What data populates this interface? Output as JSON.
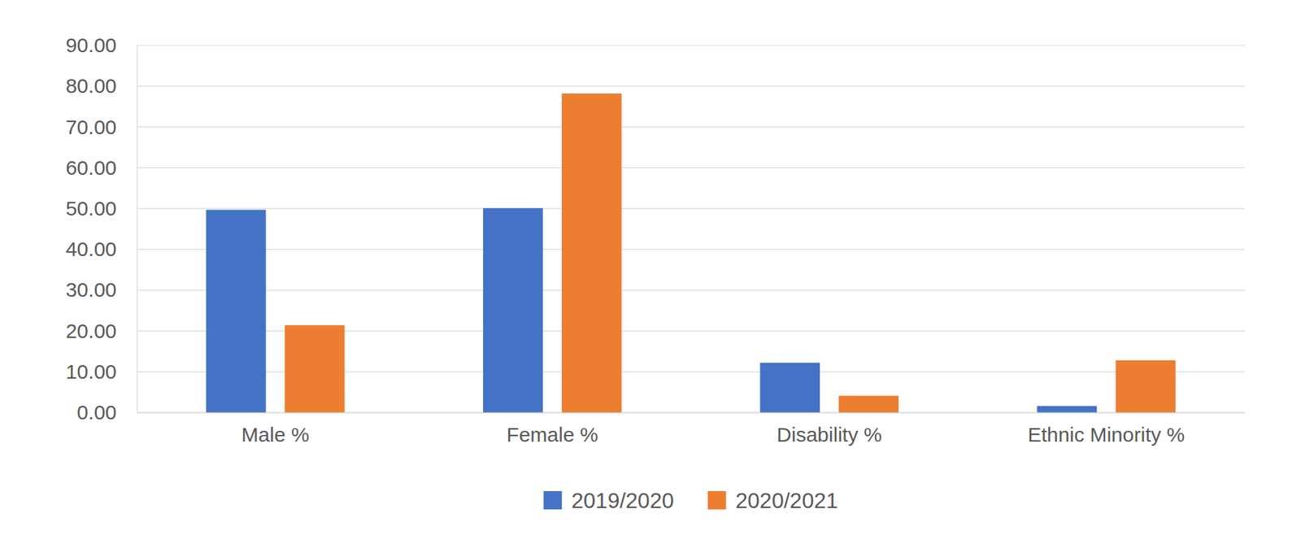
{
  "chart_data": {
    "type": "bar",
    "categories": [
      "Male %",
      "Female %",
      "Disability %",
      "Ethnic Minority %"
    ],
    "series": [
      {
        "name": "2019/2020",
        "color": "#4472c4",
        "values": [
          49.7,
          50.1,
          12.2,
          1.6
        ]
      },
      {
        "name": "2020/2021",
        "color": "#ed7d31",
        "values": [
          21.4,
          78.2,
          4.1,
          12.8
        ]
      }
    ],
    "ylim": [
      0,
      90
    ],
    "yticks": [
      {
        "value": 0,
        "label": "0.00"
      },
      {
        "value": 10,
        "label": "10.00"
      },
      {
        "value": 20,
        "label": "20.00"
      },
      {
        "value": 30,
        "label": "30.00"
      },
      {
        "value": 40,
        "label": "40.00"
      },
      {
        "value": 50,
        "label": "50.00"
      },
      {
        "value": 60,
        "label": "60.00"
      },
      {
        "value": 70,
        "label": "70.00"
      },
      {
        "value": 80,
        "label": "80.00"
      },
      {
        "value": 90,
        "label": "90.00"
      }
    ],
    "grid": true,
    "legend": "bottom"
  }
}
